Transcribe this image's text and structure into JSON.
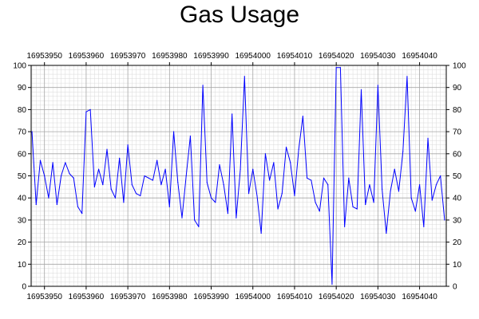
{
  "chart_data": {
    "type": "line",
    "title": "Gas Usage",
    "xlabel": "",
    "ylabel": "",
    "xlim": [
      16953946.8,
      16954046.4
    ],
    "ylim": [
      0,
      100
    ],
    "x_ticks": [
      16953950,
      16953960,
      16953970,
      16953980,
      16953990,
      16954000,
      16954010,
      16954020,
      16954030,
      16954040
    ],
    "x_tick_labels": [
      "16953950",
      "16953960",
      "16953970",
      "16953980",
      "16953990",
      "16954000",
      "16954010",
      "16954020",
      "16954030",
      "16954040"
    ],
    "y_ticks": [
      0,
      10,
      20,
      30,
      40,
      50,
      60,
      70,
      80,
      90,
      100
    ],
    "y_tick_labels": [
      "0",
      "10",
      "20",
      "30",
      "40",
      "50",
      "60",
      "70",
      "80",
      "90",
      "100"
    ],
    "x_axes": [
      "top",
      "bottom"
    ],
    "y_axes": [
      "left",
      "right"
    ],
    "grid": true,
    "minor_grid": true,
    "legend": "none",
    "line_color": "#0000ff",
    "series": [
      {
        "x_start": 16953947,
        "x_step": 1,
        "values": [
          70,
          37,
          57,
          50,
          40,
          56,
          37,
          50,
          56,
          51,
          49,
          36,
          33,
          79,
          80,
          45,
          53,
          46,
          62,
          44,
          40,
          58,
          38,
          64,
          46,
          42,
          41,
          50,
          49,
          48,
          57,
          46,
          53,
          36,
          70,
          47,
          31,
          50,
          68,
          30,
          27,
          91,
          47,
          40,
          38,
          55,
          46,
          33,
          78,
          31,
          53,
          95,
          42,
          53,
          41,
          24,
          60,
          48,
          56,
          35,
          42,
          63,
          56,
          41,
          62,
          77,
          49,
          48,
          38,
          34,
          49,
          46,
          1,
          99,
          99,
          27,
          49,
          36,
          35,
          89,
          37,
          46,
          38,
          91,
          44,
          24,
          43,
          53,
          43,
          61,
          95,
          40,
          34,
          46,
          27,
          67,
          39,
          46,
          50,
          30
        ]
      }
    ]
  }
}
